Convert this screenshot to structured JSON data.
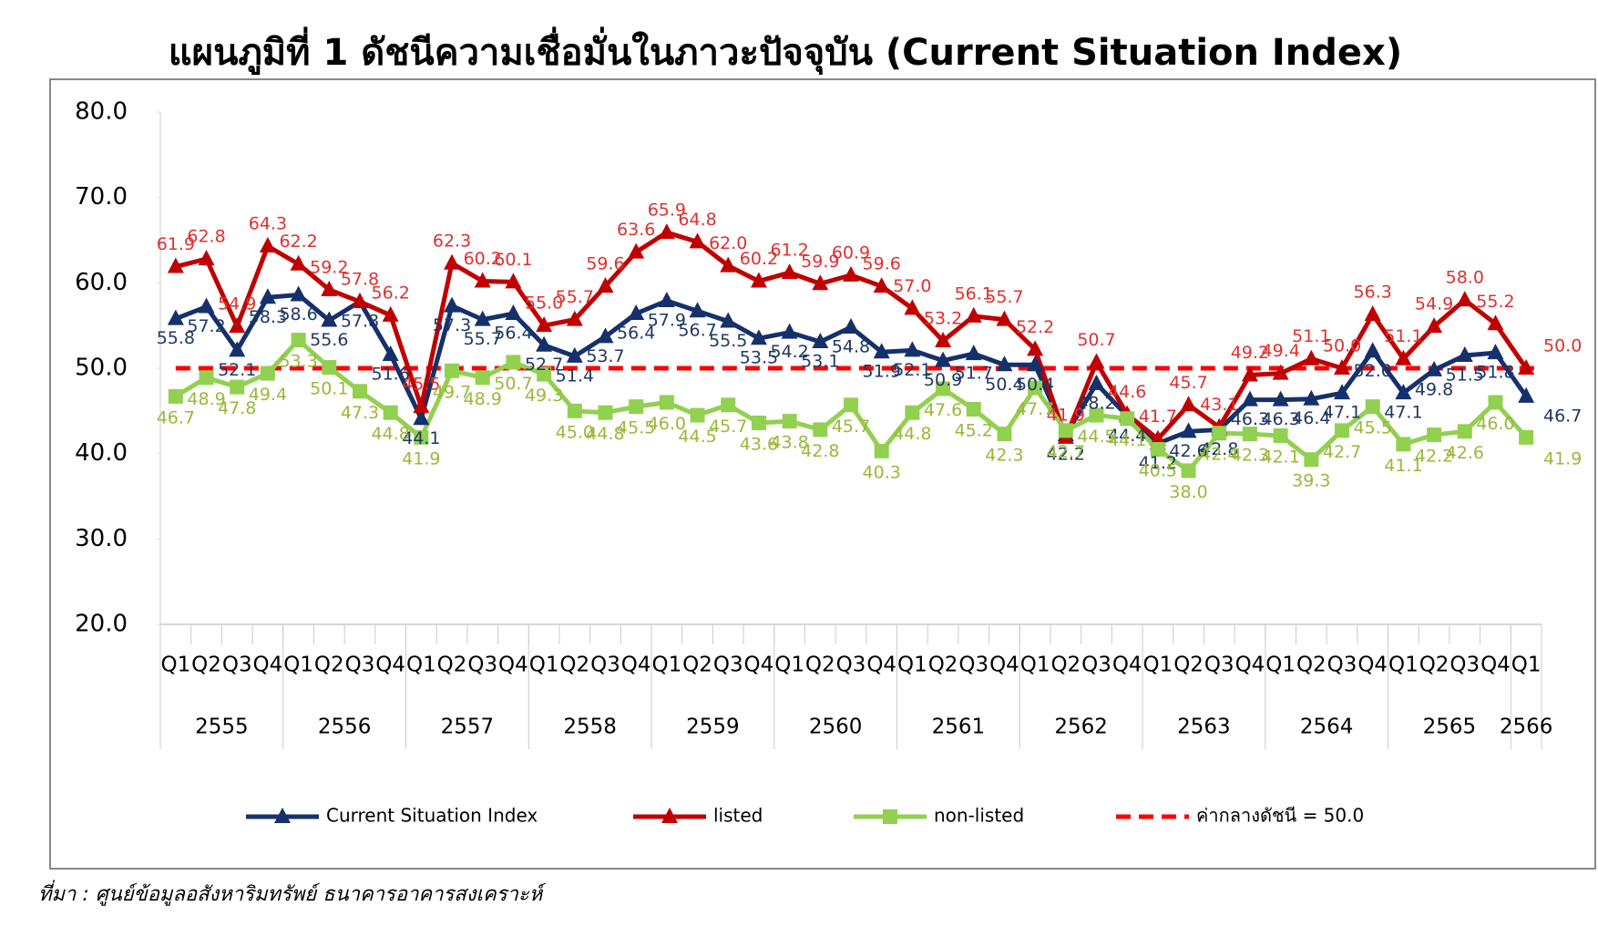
{
  "chart_data": {
    "type": "line",
    "title": "แผนภูมิที่ 1 ดัชนีความเชื่อมั่นในภาวะปัจจุบัน (Current Situation Index)",
    "source": "ที่มา : ศูนย์ข้อมูลอสังหาริมทรัพย์ ธนาคารอาคารสงเคราะห์",
    "categories": [
      "Q1",
      "Q2",
      "Q3",
      "Q4",
      "Q1",
      "Q2",
      "Q3",
      "Q4",
      "Q1",
      "Q2",
      "Q3",
      "Q4",
      "Q1",
      "Q2",
      "Q3",
      "Q4",
      "Q1",
      "Q2",
      "Q3",
      "Q4",
      "Q1",
      "Q2",
      "Q3",
      "Q4",
      "Q1",
      "Q2",
      "Q3",
      "Q4",
      "Q1",
      "Q2",
      "Q3",
      "Q4",
      "Q1",
      "Q2",
      "Q3",
      "Q4",
      "Q1",
      "Q2",
      "Q3",
      "Q4",
      "Q1",
      "Q2",
      "Q3",
      "Q4",
      "Q1"
    ],
    "years": [
      "2555",
      "2556",
      "2557",
      "2558",
      "2559",
      "2560",
      "2561",
      "2562",
      "2563",
      "2564",
      "2565",
      "2566"
    ],
    "ylim": [
      20,
      80
    ],
    "yticks": [
      {
        "value": 20,
        "label": "20.0"
      },
      {
        "value": 30,
        "label": "30.0"
      },
      {
        "value": 40,
        "label": "40.0"
      },
      {
        "value": 50,
        "label": "50.0"
      },
      {
        "value": 60,
        "label": "60.0"
      },
      {
        "value": 70,
        "label": "70.0"
      },
      {
        "value": 80,
        "label": "80.0"
      }
    ],
    "series": [
      {
        "name": "Current Situation Index",
        "color": "#15306b",
        "label_color": "#1f3864",
        "marker": "triangle",
        "values": [
          55.8,
          57.2,
          52.1,
          58.3,
          58.6,
          55.6,
          57.8,
          51.6,
          44.1,
          57.3,
          55.7,
          56.4,
          52.7,
          51.4,
          53.7,
          56.4,
          57.9,
          56.7,
          55.5,
          53.5,
          54.2,
          53.1,
          54.8,
          51.9,
          52.1,
          50.9,
          51.7,
          50.4,
          50.4,
          42.2,
          48.2,
          44.4,
          41.2,
          42.6,
          42.8,
          46.3,
          46.3,
          46.4,
          47.1,
          52.0,
          47.1,
          49.8,
          51.5,
          51.8,
          46.7
        ],
        "value_labels": [
          "55.8",
          "57.2",
          "52.1",
          "58.3",
          "58.6",
          "55.6",
          "57.8",
          "51.6",
          "44.1",
          "57.3",
          "55.7",
          "56.4",
          "52.7",
          "51.4",
          "53.7",
          "56.4",
          "57.9",
          "56.7",
          "55.5",
          "53.5",
          "54.2",
          "53.1",
          "54.8",
          "51.9",
          "52.1",
          "50.9",
          "51.7",
          "50.4",
          "50.4",
          "42.2",
          "48.2",
          "44.4",
          "41.2",
          "42.6",
          "42.8",
          "46.3",
          "46.3",
          "46.4",
          "47.1",
          "52.0",
          "47.1",
          "49.8",
          "51.5",
          "51.8",
          "46.7"
        ]
      },
      {
        "name": "listed",
        "color": "#c00000",
        "label_color": "#e03030",
        "marker": "triangle",
        "values": [
          61.9,
          62.8,
          54.9,
          64.3,
          62.2,
          59.2,
          57.8,
          56.2,
          45.5,
          62.3,
          60.2,
          60.1,
          55.0,
          55.7,
          59.6,
          63.6,
          65.9,
          64.8,
          62.0,
          60.2,
          61.2,
          59.9,
          60.9,
          59.6,
          57.0,
          53.2,
          56.1,
          55.7,
          52.2,
          41.9,
          50.7,
          44.6,
          41.7,
          45.7,
          43.1,
          49.2,
          49.4,
          51.1,
          50.0,
          56.3,
          51.1,
          54.9,
          58.0,
          55.2,
          50.0
        ],
        "value_labels": [
          "61.9",
          "62.8",
          "54.9",
          "64.3",
          "62.2",
          "59.2",
          "57.8",
          "56.2",
          "45.5",
          "62.3",
          "60.2",
          "60.1",
          "55.0",
          "55.7",
          "59.6",
          "63.6",
          "65.9",
          "64.8",
          "62.0",
          "60.2",
          "61.2",
          "59.9",
          "60.9",
          "59.6",
          "57.0",
          "53.2",
          "56.1",
          "55.7",
          "52.2",
          "41.9",
          "50.7",
          "44.6",
          "41.7",
          "45.7",
          "43.1",
          "49.2",
          "49.4",
          "51.1",
          "50.0",
          "56.3",
          "51.1",
          "54.9",
          "58.0",
          "55.2",
          "50.0"
        ]
      },
      {
        "name": "non-listed",
        "color": "#92d050",
        "label_color": "#9ab83a",
        "marker": "square",
        "values": [
          46.7,
          48.9,
          47.8,
          49.4,
          53.3,
          50.1,
          47.3,
          44.8,
          41.9,
          49.7,
          48.9,
          50.7,
          49.3,
          45.0,
          44.8,
          45.5,
          46.0,
          44.5,
          45.7,
          43.6,
          43.8,
          42.8,
          45.7,
          40.3,
          44.8,
          47.6,
          45.2,
          42.3,
          47.7,
          42.7,
          44.5,
          44.1,
          40.5,
          38.0,
          42.4,
          42.3,
          42.1,
          39.3,
          42.7,
          45.5,
          41.1,
          42.2,
          42.6,
          46.0,
          41.9
        ],
        "value_labels": [
          "46.7",
          "48.9",
          "47.8",
          "49.4",
          "53.3",
          "50.1",
          "47.3",
          "44.8",
          "41.9",
          "49.7",
          "48.9",
          "50.7",
          "49.3",
          "45.0",
          "44.8",
          "45.5",
          "46.0",
          "44.5",
          "45.7",
          "43.6",
          "43.8",
          "42.8",
          "45.7",
          "40.3",
          "44.8",
          "47.6",
          "45.2",
          "42.3",
          "47.7",
          "42.7",
          "44.5",
          "44.1",
          "40.5",
          "38.0",
          "42.4",
          "42.3",
          "42.1",
          "39.3",
          "42.7",
          "45.5",
          "41.1",
          "42.2",
          "42.6",
          "46.0",
          "41.9"
        ]
      }
    ],
    "reference_line": {
      "value": 50.0,
      "label": "ค่ากลางดัชนี = 50.0",
      "color": "#ff0000"
    },
    "legend": "bottom"
  }
}
